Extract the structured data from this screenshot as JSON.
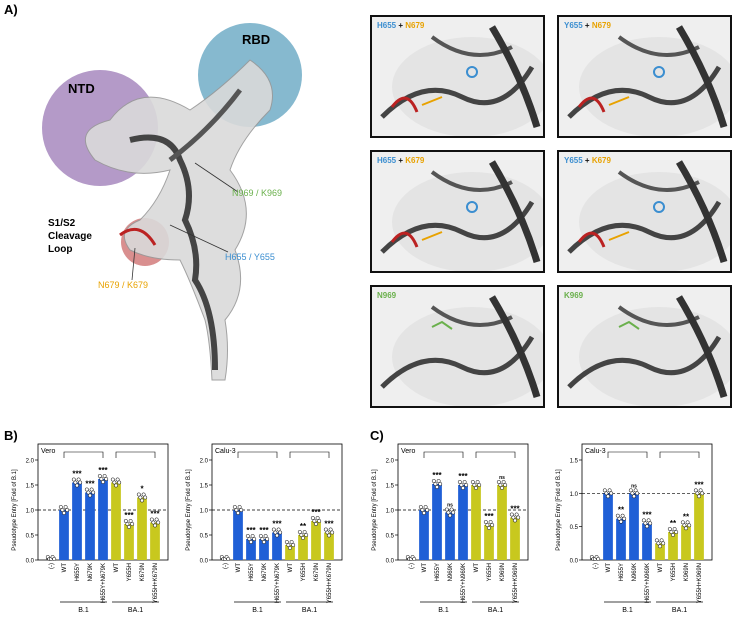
{
  "panel_labels": {
    "a": "A)",
    "b": "B)",
    "c": "C)"
  },
  "structure": {
    "ntd": "NTD",
    "rbd": "RBD",
    "cleavage": [
      "S1/S2",
      "Cleavage",
      "Loop"
    ],
    "mut_n969": "N969 / K969",
    "mut_h655": "H655 / Y655",
    "mut_n679": "N679 / K679"
  },
  "zoom_panels": [
    {
      "a": "H655",
      "plus": " + ",
      "b": "N679",
      "ca": "blue",
      "cb": "orange"
    },
    {
      "a": "Y655",
      "plus": " + ",
      "b": "N679",
      "ca": "blue",
      "cb": "orange"
    },
    {
      "a": "H655",
      "plus": " + ",
      "b": "K679",
      "ca": "blue",
      "cb": "orange"
    },
    {
      "a": "Y655",
      "plus": " + ",
      "b": "K679",
      "ca": "blue",
      "cb": "orange"
    },
    {
      "a": "N969",
      "plus": "",
      "b": "",
      "ca": "green",
      "cb": "green"
    },
    {
      "a": "K969",
      "plus": "",
      "b": "",
      "ca": "green",
      "cb": "green"
    }
  ],
  "colors": {
    "blue": "#1f5fd6",
    "yellow": "#c8c81e",
    "gray": "#bdbdbd"
  },
  "chart_data": [
    {
      "type": "bar",
      "cell": "Vero",
      "panel": "B",
      "ylabel": "Pseudotype Entry [Fold of B.1]",
      "ylim": [
        0,
        2.0
      ],
      "yticks": [
        "0.0",
        "0.5",
        "1.0",
        "1.5",
        "2.0"
      ],
      "categories": [
        "(-)",
        "WT",
        "H655Y",
        "N679K",
        "H655Y+N679K",
        "WT",
        "Y655H",
        "K679N",
        "Y655H+K679N"
      ],
      "values": [
        0.0,
        1.0,
        1.55,
        1.35,
        1.62,
        1.55,
        0.72,
        1.25,
        0.75
      ],
      "groups": [
        "none",
        "b1",
        "b1",
        "b1",
        "b1",
        "ba1",
        "ba1",
        "ba1",
        "ba1"
      ],
      "sig": [
        "",
        "",
        "***",
        "***",
        "***",
        "",
        "***",
        "*",
        "***"
      ],
      "group_labels": [
        "B.1",
        "BA.1"
      ]
    },
    {
      "type": "bar",
      "cell": "Calu-3",
      "panel": "B",
      "ylabel": "Pseudotype Entry [Fold of B.1]",
      "ylim": [
        0,
        2.0
      ],
      "yticks": [
        "0.0",
        "0.5",
        "1.0",
        "1.5",
        "2.0"
      ],
      "categories": [
        "(-)",
        "WT",
        "H655Y",
        "N679K",
        "H655Y+N679K",
        "WT",
        "Y655H",
        "K679N",
        "Y655H+K679N"
      ],
      "values": [
        0.0,
        1.0,
        0.42,
        0.42,
        0.55,
        0.3,
        0.5,
        0.78,
        0.55
      ],
      "groups": [
        "none",
        "b1",
        "b1",
        "b1",
        "b1",
        "ba1",
        "ba1",
        "ba1",
        "ba1"
      ],
      "sig": [
        "",
        "",
        "***",
        "***",
        "***",
        "",
        "**",
        "***",
        "***"
      ],
      "group_labels": [
        "B.1",
        "BA.1"
      ]
    },
    {
      "type": "bar",
      "cell": "Vero",
      "panel": "C",
      "ylabel": "Pseudotype Entry [Fold of B.1]",
      "ylim": [
        0,
        2.0
      ],
      "yticks": [
        "0.0",
        "0.5",
        "1.0",
        "1.5",
        "2.0"
      ],
      "categories": [
        "(-)",
        "WT",
        "H655Y",
        "N969K",
        "H655Y+N969K",
        "WT",
        "Y655H",
        "K969N",
        "Y655H+K969N"
      ],
      "values": [
        0.0,
        1.0,
        1.52,
        0.95,
        1.5,
        1.5,
        0.7,
        1.5,
        0.85
      ],
      "groups": [
        "none",
        "b1",
        "b1",
        "b1",
        "b1",
        "ba1",
        "ba1",
        "ba1",
        "ba1"
      ],
      "sig": [
        "",
        "",
        "***",
        "ns",
        "***",
        "",
        "***",
        "ns",
        "***"
      ],
      "group_labels": [
        "B.1",
        "BA.1"
      ]
    },
    {
      "type": "bar",
      "cell": "Calu-3",
      "panel": "C",
      "ylabel": "Pseudotype Entry [Fold of B.1]",
      "ylim": [
        0,
        1.5
      ],
      "yticks": [
        "0.0",
        "0.5",
        "1.0",
        "1.5"
      ],
      "categories": [
        "(-)",
        "WT",
        "H655Y",
        "N969K",
        "H655Y+N969K",
        "WT",
        "Y655H",
        "K969N",
        "Y655H+K969N"
      ],
      "values": [
        0.0,
        1.0,
        0.62,
        1.0,
        0.55,
        0.25,
        0.42,
        0.52,
        1.0
      ],
      "groups": [
        "none",
        "b1",
        "b1",
        "b1",
        "b1",
        "ba1",
        "ba1",
        "ba1",
        "ba1"
      ],
      "sig": [
        "",
        "",
        "**",
        "ns",
        "***",
        "",
        "**",
        "**",
        "***"
      ],
      "group_labels": [
        "B.1",
        "BA.1"
      ]
    }
  ]
}
